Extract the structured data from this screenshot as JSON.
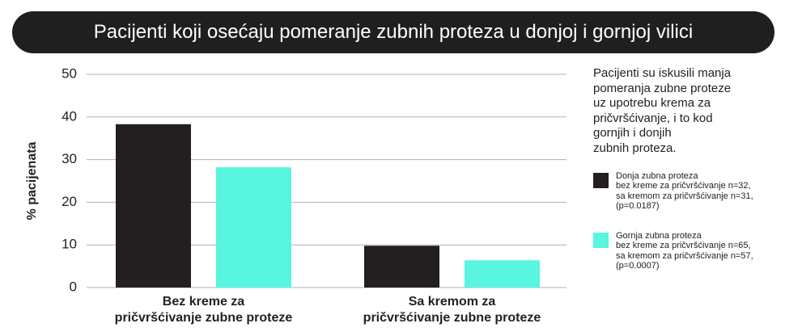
{
  "chart_data": {
    "type": "bar",
    "title": "Pacijenti koji osećaju pomeranje zubnih proteza u donjoj i gornjoj vilici",
    "y_label": "% pacijenata",
    "note": "Pacijenti su iskusili manja\npomeranja zubne proteze\nuz upotrebu krema za\npričvršćivanje, i to kod\ngornjih i donjih\nzubnih proteza.",
    "categories": [
      "Bez kreme za\npričvršćivanje zubne proteze",
      "Sa kremom za\npričvršćivanje zubne proteze"
    ],
    "series": [
      {
        "name": "Donja zubna proteza\nbez kreme za pričvršćivanje n=32,\nsa kremom za pričvršćivanje n=31,\n(p=0.0187)",
        "color": "#231f20",
        "values": [
          38.3,
          9.8
        ]
      },
      {
        "name": "Gornja zubna proteza\nbez kreme za pričvršćivanje n=65,\nsa kremom za pričvršćivanje n=57,\n(p=0.0007)",
        "color": "#58f5e1",
        "values": [
          28.2,
          6.4
        ]
      }
    ],
    "ylim": [
      0,
      50
    ],
    "yticks": [
      0,
      10,
      20,
      30,
      40,
      50
    ],
    "grid": true
  }
}
